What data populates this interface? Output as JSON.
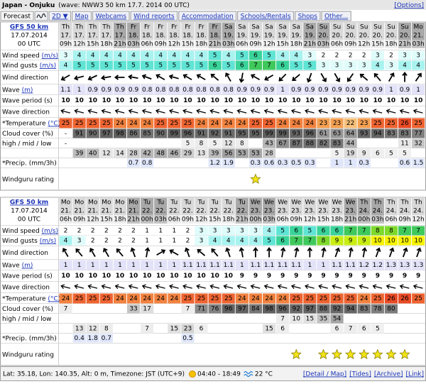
{
  "header": {
    "title": "Japan - Onjuku",
    "subtitle": "(wave: NWW3 50 km 17.7. 2014 00 UTC)",
    "options": "[Options]"
  },
  "tabs": [
    "Forecast",
    "2D ▼",
    "Map",
    "Webcams",
    "Wind reports",
    "Accommodation",
    "Schools/Rentals",
    "Shops",
    "Other..."
  ],
  "row_labels": {
    "wind_speed": {
      "text": "Wind speed",
      "unit": "(m/s)"
    },
    "wind_gusts": {
      "text": "Wind gusts",
      "unit": "(m/s)"
    },
    "wind_direction": {
      "text": "Wind direction"
    },
    "wave": {
      "text": "Wave",
      "unit": "(m)"
    },
    "wave_period": {
      "text": "Wave period (s)"
    },
    "wave_direction": {
      "text": "Wave direction"
    },
    "temperature": {
      "text": "*Temperature",
      "unit": "(°C)"
    },
    "cloud_total": {
      "text": "Cloud cover (%)"
    },
    "cloud_layers": {
      "text": "high / mid / low"
    },
    "precip": {
      "text": "*Precip. (mm/3h)"
    },
    "rating": {
      "text": "Windguru rating"
    }
  },
  "tables": [
    {
      "model": "GFS 50 km",
      "date": "17.07.2014",
      "run": "00 UTC",
      "days": [
        "Th",
        "Th",
        "Th",
        "Th",
        "Th",
        "Fr",
        "Fr",
        "Fr",
        "Fr",
        "Fr",
        "Fr",
        "Fr",
        "Sa",
        "Sa",
        "Sa",
        "Sa",
        "Sa",
        "Sa",
        "Sa",
        "Su",
        "Su",
        "Su",
        "Su",
        "Su",
        "Su",
        "Su",
        "Mo"
      ],
      "dates": [
        "17.",
        "17.",
        "17.",
        "17.",
        "17.",
        "18.",
        "18.",
        "18.",
        "18.",
        "18.",
        "18.",
        "18.",
        "19.",
        "19.",
        "19.",
        "19.",
        "19.",
        "19.",
        "19.",
        "20.",
        "20.",
        "20.",
        "20.",
        "20.",
        "20.",
        "20.",
        "21."
      ],
      "hours": [
        "09h",
        "12h",
        "15h",
        "18h",
        "21h",
        "03h",
        "06h",
        "09h",
        "12h",
        "15h",
        "18h",
        "21h",
        "03h",
        "06h",
        "09h",
        "12h",
        "15h",
        "18h",
        "21h",
        "03h",
        "06h",
        "09h",
        "12h",
        "15h",
        "18h",
        "21h",
        "03h"
      ],
      "wind_speed": [
        3,
        4,
        4,
        4,
        4,
        4,
        4,
        4,
        4,
        4,
        4,
        5,
        4,
        5,
        6,
        5,
        4,
        4,
        3,
        2,
        2,
        2,
        2,
        3,
        2,
        3,
        3
      ],
      "wind_gusts": [
        4,
        5,
        5,
        5,
        5,
        5,
        5,
        5,
        5,
        5,
        5,
        6,
        5,
        6,
        7,
        7,
        6,
        5,
        5,
        3,
        3,
        3,
        3,
        4,
        3,
        4,
        4
      ],
      "wind_direction": [
        240,
        255,
        245,
        260,
        270,
        280,
        290,
        300,
        285,
        300,
        300,
        310,
        330,
        190,
        300,
        240,
        225,
        230,
        200,
        150,
        150,
        215,
        310,
        320,
        30,
        0,
        35
      ],
      "wave": [
        1.1,
        1,
        0.9,
        0.9,
        0.9,
        0.9,
        0.8,
        0.8,
        0.8,
        0.8,
        0.8,
        0.8,
        0.8,
        0.9,
        0.9,
        0.9,
        1,
        0.9,
        0.9,
        0.9,
        0.9,
        0.9,
        0.9,
        0.9,
        1,
        0.9,
        1
      ],
      "wave_period": [
        10,
        10,
        10,
        10,
        10,
        10,
        10,
        10,
        10,
        10,
        10,
        10,
        10,
        10,
        10,
        10,
        10,
        10,
        10,
        10,
        10,
        10,
        10,
        10,
        10,
        10,
        10
      ],
      "wave_direction": [
        285,
        285,
        285,
        285,
        285,
        285,
        285,
        285,
        285,
        285,
        285,
        285,
        285,
        285,
        285,
        285,
        285,
        285,
        285,
        285,
        285,
        285,
        285,
        285,
        285,
        285,
        285
      ],
      "temperature": [
        25,
        25,
        25,
        25,
        24,
        24,
        24,
        25,
        25,
        25,
        24,
        24,
        24,
        24,
        25,
        25,
        24,
        24,
        24,
        23,
        23,
        22,
        23,
        25,
        25,
        26,
        25
      ],
      "cloud_total": [
        "-",
        91,
        90,
        97,
        98,
        86,
        85,
        90,
        99,
        96,
        91,
        92,
        91,
        95,
        95,
        99,
        99,
        93,
        96,
        61,
        63,
        64,
        93,
        94,
        83,
        83,
        77
      ],
      "cloud_layers": [
        [
          "-",
          null,
          null,
          null,
          null,
          null,
          null,
          null,
          null,
          5,
          8,
          5,
          12,
          8,
          null,
          43,
          67,
          87,
          88,
          82,
          83,
          44,
          null,
          null,
          null,
          11,
          32
        ],
        [
          null,
          39,
          40,
          12,
          14,
          28,
          42,
          48,
          46,
          29,
          13,
          39,
          56,
          53,
          53,
          28,
          null,
          null,
          null,
          null,
          5,
          19,
          9,
          6,
          5,
          5,
          null
        ]
      ],
      "precip": [
        null,
        null,
        null,
        null,
        null,
        0.7,
        0.8,
        null,
        null,
        null,
        null,
        1.2,
        1.9,
        null,
        0.3,
        0.6,
        0.3,
        0.5,
        0.3,
        null,
        1,
        1,
        0.3,
        null,
        null,
        0.6,
        1.5
      ],
      "rating": [
        null,
        null,
        null,
        null,
        null,
        null,
        null,
        null,
        null,
        null,
        null,
        null,
        null,
        null,
        1,
        null,
        null,
        null,
        null,
        null,
        null,
        null,
        null,
        null,
        null,
        null,
        null
      ]
    },
    {
      "model": "GFS 50 km",
      "date": "17.07.2014",
      "run": "00 UTC",
      "days": [
        "Mo",
        "Mo",
        "Mo",
        "Mo",
        "Mo",
        "Mo",
        "Tu",
        "Tu",
        "Tu",
        "Tu",
        "Tu",
        "Tu",
        "Tu",
        "Tu",
        "We",
        "We",
        "We",
        "We",
        "We",
        "We",
        "We",
        "We",
        "Th",
        "Th",
        "Th",
        "Th",
        "Th"
      ],
      "dates": [
        "21.",
        "21.",
        "21.",
        "21.",
        "21.",
        "21.",
        "22.",
        "22.",
        "22.",
        "22.",
        "22.",
        "22.",
        "22.",
        "22.",
        "23.",
        "23.",
        "23.",
        "23.",
        "23.",
        "23.",
        "23.",
        "23.",
        "24.",
        "24.",
        "24.",
        "24.",
        "24."
      ],
      "hours": [
        "06h",
        "09h",
        "12h",
        "15h",
        "18h",
        "21h",
        "00h",
        "03h",
        "06h",
        "09h",
        "12h",
        "15h",
        "18h",
        "21h",
        "00h",
        "03h",
        "06h",
        "09h",
        "12h",
        "15h",
        "18h",
        "21h",
        "00h",
        "03h",
        "06h",
        "09h",
        "12h"
      ],
      "wind_speed": [
        2,
        2,
        2,
        2,
        2,
        2,
        1,
        1,
        1,
        2,
        3,
        3,
        3,
        3,
        3,
        4,
        5,
        6,
        5,
        6,
        6,
        7,
        7,
        8,
        8,
        7,
        7
      ],
      "wind_gusts": [
        4,
        3,
        2,
        2,
        2,
        2,
        1,
        1,
        1,
        2,
        3,
        4,
        4,
        4,
        4,
        5,
        6,
        7,
        7,
        8,
        9,
        9,
        9,
        10,
        10,
        10,
        10
      ],
      "wind_direction": [
        330,
        320,
        330,
        330,
        320,
        340,
        10,
        60,
        300,
        340,
        310,
        320,
        340,
        350,
        0,
        0,
        10,
        10,
        0,
        10,
        20,
        10,
        10,
        20,
        20,
        20,
        20
      ],
      "wave": [
        1,
        1,
        1,
        1,
        1,
        1,
        1,
        1,
        1,
        1.1,
        1.1,
        1.1,
        1.1,
        1,
        1.1,
        1.1,
        1.1,
        1.1,
        1,
        1,
        1.1,
        1.1,
        1.2,
        1.2,
        1.3,
        1.3,
        1.3
      ],
      "wave_period": [
        10,
        10,
        10,
        10,
        10,
        10,
        10,
        10,
        10,
        10,
        10,
        10,
        10,
        9,
        9,
        9,
        9,
        9,
        9,
        9,
        9,
        9,
        9,
        9,
        9,
        9,
        9
      ],
      "wave_direction": [
        285,
        285,
        285,
        285,
        285,
        285,
        285,
        285,
        285,
        285,
        285,
        285,
        285,
        285,
        285,
        285,
        285,
        285,
        285,
        285,
        285,
        285,
        285,
        285,
        285,
        285,
        285
      ],
      "temperature": [
        24,
        25,
        25,
        25,
        24,
        24,
        24,
        24,
        24,
        25,
        25,
        25,
        25,
        24,
        24,
        24,
        24,
        25,
        25,
        25,
        25,
        25,
        24,
        25,
        26,
        26,
        25
      ],
      "cloud_total": [
        7,
        null,
        null,
        null,
        null,
        33,
        17,
        null,
        null,
        7,
        71,
        76,
        96,
        97,
        84,
        98,
        96,
        92,
        97,
        88,
        92,
        94,
        83,
        78,
        80,
        null,
        null
      ],
      "cloud_layers": [
        [
          null,
          null,
          null,
          null,
          null,
          null,
          null,
          null,
          null,
          null,
          null,
          null,
          null,
          null,
          null,
          null,
          7,
          10,
          15,
          35,
          54,
          null,
          null,
          null,
          null,
          null,
          null
        ],
        [
          null,
          13,
          12,
          8,
          null,
          null,
          7,
          null,
          15,
          23,
          6,
          null,
          null,
          null,
          null,
          15,
          6,
          null,
          null,
          null,
          6,
          7,
          6,
          5,
          null,
          null,
          null
        ]
      ],
      "precip": [
        null,
        0.4,
        1.8,
        0.7,
        null,
        null,
        null,
        null,
        null,
        0.5,
        null,
        null,
        null,
        null,
        null,
        null,
        null,
        null,
        null,
        null,
        null,
        null,
        null,
        null,
        null,
        null,
        null
      ],
      "rating": [
        null,
        null,
        null,
        null,
        null,
        null,
        null,
        null,
        null,
        null,
        null,
        null,
        null,
        null,
        null,
        null,
        null,
        1,
        null,
        1,
        1,
        1,
        1,
        1,
        1,
        1,
        null
      ]
    }
  ],
  "footer": {
    "location": "Lat: 35.18, Lon: 140.35, Alt: 0 m, Timezone: JST (UTC+9)",
    "sun": "04:40 - 18:49",
    "water": "22 °C",
    "links": [
      "[Detail / Map]",
      "[Tides]",
      "[Archive]",
      "[Link]"
    ]
  }
}
